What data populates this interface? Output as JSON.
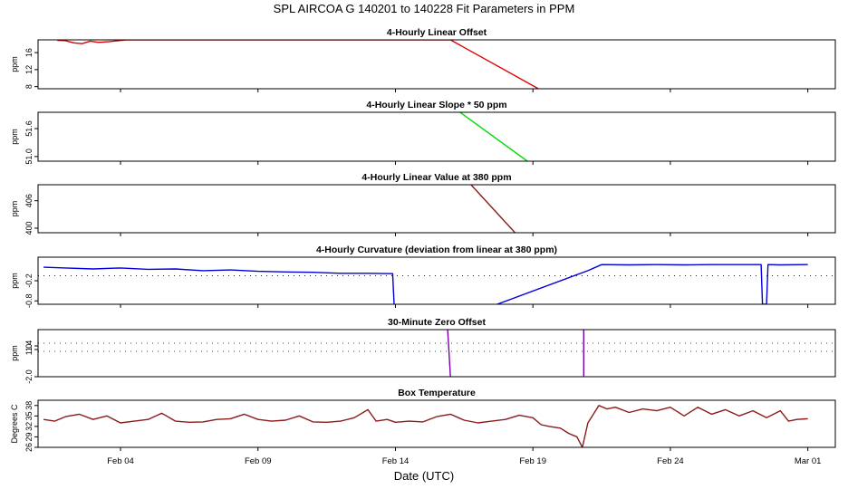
{
  "chart_data": {
    "type": "line",
    "title": "SPL   AIRCOA G   140201 to 140228   Fit Parameters in PPM",
    "xlabel": "Date (UTC)",
    "xlim": [
      1,
      30
    ],
    "x_ticks": [
      {
        "day": 4,
        "label": "Feb 04"
      },
      {
        "day": 9,
        "label": "Feb 09"
      },
      {
        "day": 14,
        "label": "Feb 14"
      },
      {
        "day": 19,
        "label": "Feb 19"
      },
      {
        "day": 24,
        "label": "Feb 24"
      },
      {
        "day": 29,
        "label": "Mar 01"
      }
    ],
    "panels": [
      {
        "title": "4-Hourly Linear Offset",
        "ylabel": "ppm",
        "ylim": [
          7.5,
          19.0
        ],
        "yticks": [
          {
            "v": 8,
            "label": "8"
          },
          {
            "v": 12,
            "label": "12"
          },
          {
            "v": 16,
            "label": "16"
          }
        ],
        "color": "#e00000",
        "series": [
          {
            "name": "offset",
            "points": [
              [
                1.7,
                18.9
              ],
              [
                2.0,
                18.8
              ],
              [
                2.3,
                18.3
              ],
              [
                2.6,
                18.1
              ],
              [
                2.9,
                18.7
              ],
              [
                3.2,
                18.4
              ],
              [
                3.6,
                18.6
              ],
              [
                4.2,
                19.0
              ],
              [
                5.0,
                19.0
              ],
              [
                6.0,
                19.0
              ],
              [
                7.0,
                19.0
              ],
              [
                8.0,
                19.0
              ],
              [
                16.0,
                19.0
              ],
              [
                19.2,
                7.5
              ]
            ]
          }
        ],
        "hlines": []
      },
      {
        "title": "4-Hourly Linear Slope * 50 ppm",
        "ylabel": "ppm",
        "ylim": [
          50.9,
          51.95
        ],
        "yticks": [
          {
            "v": 51.0,
            "label": "51.0"
          },
          {
            "v": 51.6,
            "label": "51.6"
          }
        ],
        "color": "#00dd00",
        "series": [
          {
            "name": "slope",
            "points": [
              [
                16.35,
                51.95
              ],
              [
                18.8,
                50.9
              ]
            ]
          }
        ],
        "hlines": []
      },
      {
        "title": "4-Hourly Linear Value at 380 ppm",
        "ylabel": "ppm",
        "ylim": [
          399.0,
          409.5
        ],
        "yticks": [
          {
            "v": 400,
            "label": "400"
          },
          {
            "v": 406,
            "label": "406"
          }
        ],
        "color": "#8b1a1a",
        "series": [
          {
            "name": "value",
            "points": [
              [
                16.75,
                409.5
              ],
              [
                18.35,
                399.0
              ]
            ]
          }
        ],
        "hlines": []
      },
      {
        "title": "4-Hourly Curvature (deviation from linear at 380 ppm)",
        "ylabel": "ppm",
        "ylim": [
          -0.9,
          0.5
        ],
        "yticks": [
          {
            "v": -0.8,
            "label": "-0.8"
          },
          {
            "v": -0.2,
            "label": "-0.2"
          }
        ],
        "color": "#0000dd",
        "series": [
          {
            "name": "curvature_a",
            "points": [
              [
                1.2,
                0.2
              ],
              [
                2.0,
                0.18
              ],
              [
                3.0,
                0.15
              ],
              [
                4.0,
                0.18
              ],
              [
                5.0,
                0.14
              ],
              [
                6.0,
                0.15
              ],
              [
                7.0,
                0.1
              ],
              [
                8.0,
                0.12
              ],
              [
                9.0,
                0.08
              ],
              [
                10.0,
                0.06
              ],
              [
                11.0,
                0.05
              ],
              [
                12.0,
                0.02
              ],
              [
                13.0,
                0.02
              ],
              [
                13.9,
                0.01
              ],
              [
                13.95,
                -0.9
              ]
            ]
          },
          {
            "name": "curvature_b",
            "points": [
              [
                17.7,
                -0.9
              ],
              [
                21.0,
                0.1
              ],
              [
                21.5,
                0.28
              ],
              [
                22.5,
                0.27
              ],
              [
                23.5,
                0.28
              ],
              [
                24.5,
                0.27
              ],
              [
                25.5,
                0.28
              ],
              [
                26.5,
                0.28
              ],
              [
                27.3,
                0.28
              ],
              [
                27.35,
                -0.9
              ],
              [
                27.5,
                -0.9
              ],
              [
                27.55,
                0.28
              ],
              [
                28.0,
                0.27
              ],
              [
                29.0,
                0.28
              ]
            ]
          }
        ],
        "hlines": [
          {
            "v": -0.05,
            "style": "dotted"
          }
        ]
      },
      {
        "title": "30-Minute Zero Offset",
        "ylabel": "ppm",
        "ylim": [
          -2.0,
          3.2
        ],
        "yticks": [
          {
            "v": -2.0,
            "label": "-2.0"
          },
          {
            "v": 1.0,
            "label": "1.0"
          },
          {
            "v": 1.4,
            "label": "1.4"
          }
        ],
        "color": "#7700aa",
        "series": [
          {
            "name": "zero_a",
            "points": [
              [
                15.9,
                3.2
              ],
              [
                16.0,
                -2.0
              ]
            ]
          },
          {
            "name": "zero_b",
            "points": [
              [
                20.85,
                3.2
              ],
              [
                20.85,
                -2.0
              ]
            ]
          }
        ],
        "hlines": [
          {
            "v": 0.8,
            "style": "dotted"
          },
          {
            "v": 1.7,
            "style": "dotted"
          }
        ]
      },
      {
        "title": "Box Temperature",
        "ylabel": "Degrees C",
        "ylim": [
          26.0,
          39.5
        ],
        "yticks": [
          {
            "v": 26,
            "label": "26"
          },
          {
            "v": 29,
            "label": "29"
          },
          {
            "v": 32,
            "label": "32"
          },
          {
            "v": 35,
            "label": "35"
          },
          {
            "v": 38,
            "label": "38"
          }
        ],
        "color": "#8b1a1a",
        "series": [
          {
            "name": "temperature",
            "points": [
              [
                1.2,
                34.0
              ],
              [
                1.6,
                33.5
              ],
              [
                2.0,
                34.8
              ],
              [
                2.5,
                35.5
              ],
              [
                3.0,
                34.0
              ],
              [
                3.5,
                35.0
              ],
              [
                4.0,
                33.0
              ],
              [
                4.5,
                33.5
              ],
              [
                5.0,
                34.0
              ],
              [
                5.5,
                35.8
              ],
              [
                6.0,
                33.5
              ],
              [
                6.5,
                33.2
              ],
              [
                7.0,
                33.3
              ],
              [
                7.5,
                34.0
              ],
              [
                8.0,
                34.2
              ],
              [
                8.5,
                35.5
              ],
              [
                9.0,
                34.0
              ],
              [
                9.5,
                33.5
              ],
              [
                10.0,
                33.8
              ],
              [
                10.5,
                35.0
              ],
              [
                11.0,
                33.3
              ],
              [
                11.5,
                33.2
              ],
              [
                12.0,
                33.5
              ],
              [
                12.5,
                34.5
              ],
              [
                13.0,
                36.8
              ],
              [
                13.3,
                33.5
              ],
              [
                13.7,
                34.0
              ],
              [
                14.0,
                33.2
              ],
              [
                14.5,
                33.5
              ],
              [
                15.0,
                33.3
              ],
              [
                15.5,
                34.8
              ],
              [
                16.0,
                35.5
              ],
              [
                16.5,
                33.8
              ],
              [
                17.0,
                33.0
              ],
              [
                17.5,
                33.5
              ],
              [
                18.0,
                34.0
              ],
              [
                18.5,
                35.2
              ],
              [
                19.0,
                34.5
              ],
              [
                19.3,
                32.5
              ],
              [
                19.6,
                32.0
              ],
              [
                20.0,
                31.5
              ],
              [
                20.3,
                30.0
              ],
              [
                20.6,
                29.0
              ],
              [
                20.8,
                26.0
              ],
              [
                21.0,
                33.0
              ],
              [
                21.2,
                35.5
              ],
              [
                21.4,
                38.0
              ],
              [
                21.7,
                37.0
              ],
              [
                22.0,
                37.5
              ],
              [
                22.5,
                36.0
              ],
              [
                23.0,
                37.0
              ],
              [
                23.5,
                36.5
              ],
              [
                24.0,
                37.5
              ],
              [
                24.5,
                35.0
              ],
              [
                25.0,
                37.5
              ],
              [
                25.5,
                35.5
              ],
              [
                26.0,
                36.8
              ],
              [
                26.5,
                35.0
              ],
              [
                27.0,
                36.5
              ],
              [
                27.5,
                34.5
              ],
              [
                28.0,
                36.5
              ],
              [
                28.3,
                33.5
              ],
              [
                28.6,
                34.0
              ],
              [
                29.0,
                34.2
              ]
            ]
          }
        ],
        "hlines": []
      }
    ]
  }
}
